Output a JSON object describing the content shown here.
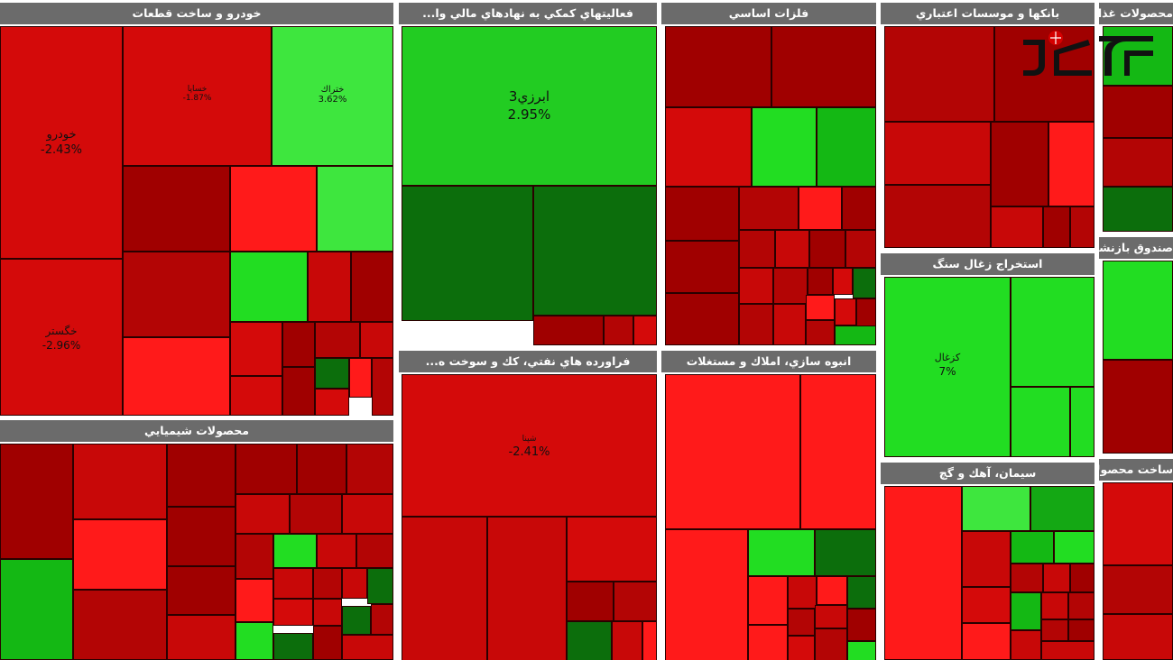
{
  "chart_data": {
    "type": "treemap",
    "colors": {
      "up_strong": "#22dd22",
      "up": "#14b814",
      "up_dark": "#0c6e0c",
      "down_strong": "#ff1a1a",
      "down": "#d40a0a",
      "down_dark": "#a00000"
    },
    "sectors": [
      {
        "name": "خودرو و ساخت قطعات",
        "tiles": [
          {
            "label": "خودرو",
            "value": "-2.43%",
            "dir": "down"
          },
          {
            "label": "خگستر",
            "value": "-2.96%",
            "dir": "down"
          },
          {
            "label": "خساپا",
            "value": "-1.87%",
            "dir": "down"
          },
          {
            "label": "ختراك",
            "value": "3.62%",
            "dir": "up"
          },
          {
            "label": "",
            "value": "",
            "dir": "down_dark"
          },
          {
            "label": "",
            "value": "",
            "dir": "down_strong"
          },
          {
            "label": "",
            "value": "",
            "dir": "up_strong"
          },
          {
            "label": "",
            "value": "",
            "dir": "down"
          },
          {
            "label": "",
            "value": "",
            "dir": "up_strong"
          },
          {
            "label": "",
            "value": "",
            "dir": "down_strong"
          }
        ]
      },
      {
        "name": "فعاليتهاي كمكي به نهادهاي مالي وا...",
        "tiles": [
          {
            "label": "ابرزي3",
            "value": "2.95%",
            "dir": "up"
          },
          {
            "label": "",
            "value": "",
            "dir": "up_dark"
          },
          {
            "label": "",
            "value": "",
            "dir": "up_dark"
          }
        ]
      },
      {
        "name": "فلزات اساسي",
        "tiles": []
      },
      {
        "name": "بانكها و موسسات اعتباري",
        "tiles": []
      },
      {
        "name": "محصولات غذايي و آشا...",
        "tiles": []
      },
      {
        "name": "محصولات شيميايي",
        "tiles": []
      },
      {
        "name": "فراورده هاي نفتي، كك و سوخت ه...",
        "tiles": [
          {
            "label": "شپنا",
            "value": "-2.41%",
            "dir": "down"
          }
        ]
      },
      {
        "name": "انبوه سازي، املاك و مستغلات",
        "tiles": []
      },
      {
        "name": "استخراج زغال سنگ",
        "tiles": [
          {
            "label": "كزغال",
            "value": "7%",
            "dir": "up"
          }
        ]
      },
      {
        "name": "صندوق بازنشس...",
        "tiles": []
      },
      {
        "name": "سيمان، آهك و گچ",
        "tiles": []
      },
      {
        "name": "ساخت محصولات فلزي...",
        "tiles": []
      }
    ]
  }
}
